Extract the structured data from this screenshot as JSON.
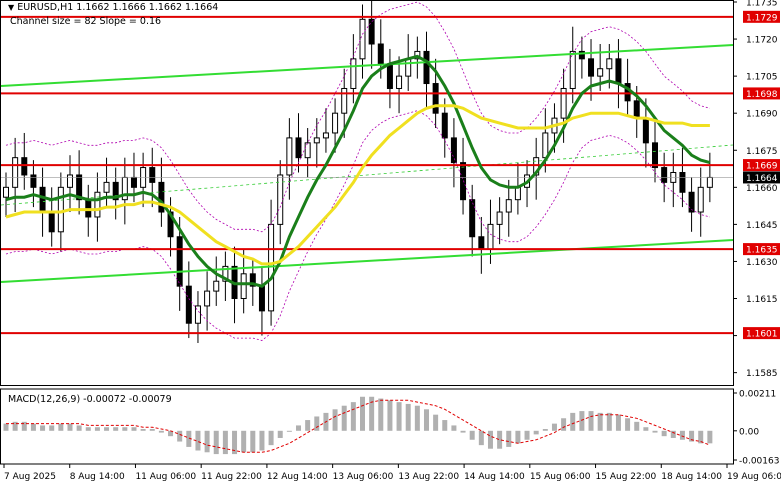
{
  "header": {
    "symbol_line": "EURUSD,H1  1.1662 1.1666 1.1662 1.1664",
    "channel_line": "Channel size = 82 Slope = 0.16"
  },
  "macd": {
    "label": "MACD(12,26,9) -0.00072 -0.00079",
    "scale": [
      "0.00211",
      "0.00",
      "-0.00163"
    ]
  },
  "colors": {
    "candle": "#000000",
    "ma_green": "#1a7f1a",
    "ma_yellow": "#f0e020",
    "channel": "#33dd33",
    "level": "#e00000",
    "bollinger": "#b000b0",
    "highlight_label": "#000000"
  },
  "chart_data": {
    "type": "candlestick",
    "price_axis": {
      "min": 1.158,
      "max": 1.1735,
      "ticks": [
        "1.1735",
        "1.1720",
        "1.1705",
        "1.1690",
        "1.1675",
        "1.1660",
        "1.1645",
        "1.1630",
        "1.1615",
        "1.1600",
        "1.1585"
      ]
    },
    "levels": [
      {
        "label": "1.1729",
        "value": 1.1729
      },
      {
        "label": "1.1698",
        "value": 1.1698
      },
      {
        "label": "1.1669",
        "value": 1.1669
      },
      {
        "label": "1.1635",
        "value": 1.1635
      },
      {
        "label": "1.1601",
        "value": 1.1601
      }
    ],
    "current_price": "1.1664",
    "time_labels": [
      "7 Aug 2025",
      "8 Aug 14:00",
      "11 Aug 06:00",
      "11 Aug 22:00",
      "12 Aug 14:00",
      "13 Aug 06:00",
      "13 Aug 22:00",
      "14 Aug 14:00",
      "15 Aug 06:00",
      "15 Aug 22:00",
      "18 Aug 14:00",
      "19 Aug 06:00"
    ],
    "closes": [
      1.166,
      1.1672,
      1.1665,
      1.166,
      1.165,
      1.1642,
      1.166,
      1.1665,
      1.1655,
      1.1648,
      1.1658,
      1.1662,
      1.1655,
      1.1664,
      1.166,
      1.1668,
      1.1662,
      1.165,
      1.164,
      1.162,
      1.1605,
      1.1612,
      1.1618,
      1.1622,
      1.1628,
      1.1615,
      1.1625,
      1.162,
      1.161,
      1.1645,
      1.1665,
      1.168,
      1.1672,
      1.1678,
      1.168,
      1.1682,
      1.169,
      1.17,
      1.1712,
      1.1728,
      1.1718,
      1.171,
      1.17,
      1.1705,
      1.1712,
      1.1715,
      1.1702,
      1.169,
      1.168,
      1.167,
      1.1655,
      1.164,
      1.1635,
      1.1645,
      1.165,
      1.1655,
      1.166,
      1.1665,
      1.1672,
      1.1682,
      1.1688,
      1.17,
      1.1715,
      1.1712,
      1.1705,
      1.1708,
      1.1712,
      1.1702,
      1.1695,
      1.1688,
      1.1678,
      1.1668,
      1.1662,
      1.1666,
      1.1658,
      1.165,
      1.166,
      1.1664
    ],
    "series": [
      {
        "name": "MA fast",
        "values": [
          1.1655,
          1.1656,
          1.1656,
          1.1657,
          1.1656,
          1.1655,
          1.1656,
          1.1657,
          1.1656,
          1.1655,
          1.1655,
          1.1656,
          1.1656,
          1.1657,
          1.1657,
          1.1658,
          1.1657,
          1.1654,
          1.1649,
          1.1643,
          1.1637,
          1.1632,
          1.1628,
          1.1625,
          1.1623,
          1.1621,
          1.1621,
          1.1621,
          1.162,
          1.1623,
          1.163,
          1.164,
          1.1648,
          1.1656,
          1.1663,
          1.1669,
          1.1676,
          1.1683,
          1.1691,
          1.17,
          1.1705,
          1.1708,
          1.171,
          1.1711,
          1.1712,
          1.1713,
          1.1711,
          1.1707,
          1.1701,
          1.1694,
          1.1685,
          1.1676,
          1.1668,
          1.1663,
          1.1661,
          1.166,
          1.166,
          1.1662,
          1.1666,
          1.1671,
          1.1677,
          1.1684,
          1.1692,
          1.1698,
          1.1701,
          1.1702,
          1.1703,
          1.1702,
          1.17,
          1.1697,
          1.1693,
          1.1688,
          1.1683,
          1.168,
          1.1677,
          1.1673,
          1.1671,
          1.167
        ]
      },
      {
        "name": "MA slow",
        "values": [
          1.1648,
          1.1649,
          1.165,
          1.165,
          1.165,
          1.165,
          1.165,
          1.1651,
          1.1651,
          1.1651,
          1.1651,
          1.1652,
          1.1652,
          1.1653,
          1.1653,
          1.1654,
          1.1654,
          1.1653,
          1.1652,
          1.165,
          1.1647,
          1.1644,
          1.1641,
          1.1638,
          1.1636,
          1.1634,
          1.1632,
          1.1631,
          1.1629,
          1.1629,
          1.163,
          1.1633,
          1.1636,
          1.164,
          1.1644,
          1.1648,
          1.1652,
          1.1657,
          1.1662,
          1.1668,
          1.1673,
          1.1677,
          1.1681,
          1.1684,
          1.1687,
          1.169,
          1.1692,
          1.1693,
          1.1693,
          1.1693,
          1.1692,
          1.169,
          1.1688,
          1.1687,
          1.1686,
          1.1685,
          1.1684,
          1.1684,
          1.1684,
          1.1684,
          1.1685,
          1.1686,
          1.1688,
          1.1689,
          1.169,
          1.169,
          1.169,
          1.169,
          1.1689,
          1.1688,
          1.1688,
          1.1687,
          1.1686,
          1.1686,
          1.1686,
          1.1685,
          1.1685,
          1.1685
        ]
      }
    ],
    "macd_histogram": [
      0.0004,
      0.0005,
      0.0005,
      0.0004,
      0.0003,
      0.0003,
      0.0004,
      0.0004,
      0.0003,
      0.0002,
      0.0002,
      0.0002,
      0.0002,
      0.0002,
      0.0002,
      0.0001,
      0.0001,
      -0.0001,
      -0.0003,
      -0.0006,
      -0.0009,
      -0.0011,
      -0.0012,
      -0.0013,
      -0.0013,
      -0.0013,
      -0.0012,
      -0.0012,
      -0.0011,
      -0.0008,
      -0.0004,
      0.0,
      0.0003,
      0.0006,
      0.0008,
      0.001,
      0.0012,
      0.0014,
      0.0016,
      0.0019,
      0.0019,
      0.0018,
      0.0017,
      0.0016,
      0.0015,
      0.0014,
      0.0012,
      0.0009,
      0.0006,
      0.0003,
      -0.0001,
      -0.0005,
      -0.0008,
      -0.001,
      -0.001,
      -0.0009,
      -0.0007,
      -0.0005,
      -0.0002,
      0.0001,
      0.0004,
      0.0007,
      0.001,
      0.0011,
      0.0011,
      0.001,
      0.001,
      0.0009,
      0.0007,
      0.0005,
      0.0002,
      -0.0001,
      -0.0003,
      -0.0004,
      -0.0005,
      -0.0006,
      -0.0007,
      -0.0007
    ],
    "macd_signal": [
      0.0004,
      0.0004,
      0.0004,
      0.0004,
      0.0004,
      0.0004,
      0.0004,
      0.0004,
      0.0004,
      0.0003,
      0.0003,
      0.0003,
      0.0003,
      0.0003,
      0.0003,
      0.0002,
      0.0002,
      0.0001,
      0.0,
      -0.0002,
      -0.0004,
      -0.0006,
      -0.0008,
      -0.0009,
      -0.001,
      -0.0011,
      -0.0012,
      -0.0012,
      -0.0012,
      -0.0011,
      -0.0009,
      -0.0007,
      -0.0004,
      -0.0001,
      0.0002,
      0.0005,
      0.0008,
      0.001,
      0.0012,
      0.0014,
      0.0016,
      0.0017,
      0.0017,
      0.0017,
      0.0017,
      0.0016,
      0.0015,
      0.0014,
      0.0012,
      0.0009,
      0.0006,
      0.0003,
      0.0,
      -0.0003,
      -0.0005,
      -0.0006,
      -0.0007,
      -0.0006,
      -0.0005,
      -0.0003,
      -0.0001,
      0.0002,
      0.0004,
      0.0006,
      0.0008,
      0.0009,
      0.0009,
      0.0009,
      0.0008,
      0.0007,
      0.0005,
      0.0003,
      0.0001,
      -0.0001,
      -0.0003,
      -0.0005,
      -0.0006,
      -0.0008
    ]
  }
}
